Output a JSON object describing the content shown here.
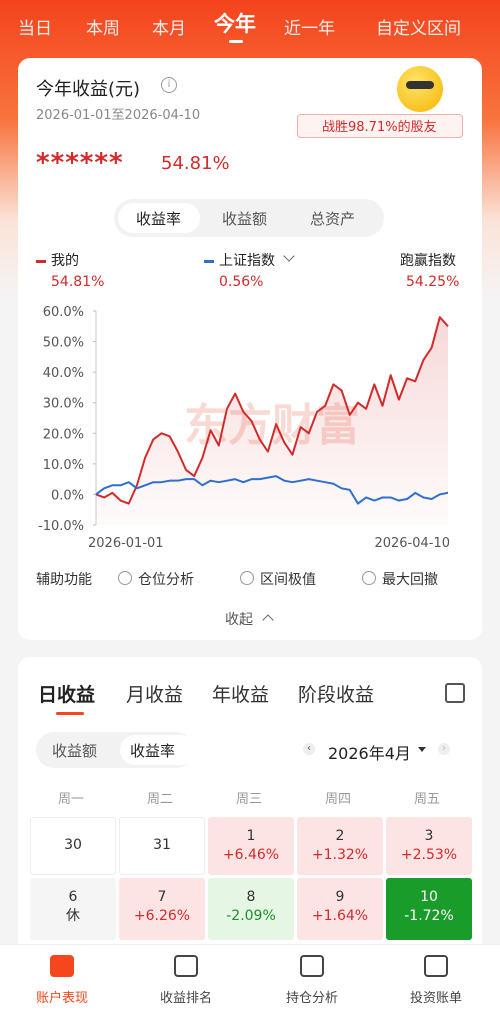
{
  "tabs": {
    "items": [
      "当日",
      "本周",
      "本月",
      "今年",
      "近一年",
      "自定义区间"
    ],
    "active": 3
  },
  "card": {
    "title": "今年收益(元)",
    "date_range": "2026-01-01至2026-04-10",
    "badge": "战胜98.71%的股友",
    "masked": "******",
    "total": "54.81%",
    "segment": {
      "items": [
        "收益率",
        "收益额",
        "总资产"
      ],
      "active": 0
    },
    "legend": [
      {
        "name": "我的",
        "value": "54.81%"
      },
      {
        "name": "上证指数",
        "value": "0.56%"
      },
      {
        "name": "跑赢指数",
        "value": "54.25%"
      }
    ],
    "assist": {
      "label": "辅助功能",
      "options": [
        "仓位分析",
        "区间极值",
        "最大回撤"
      ]
    },
    "collapse": "收起"
  },
  "chart_data": {
    "type": "line",
    "watermark": "东方财富",
    "categories": [
      "2026-01-01",
      null,
      null,
      null,
      null,
      null,
      null,
      null,
      null,
      null,
      null,
      null,
      null,
      null,
      null,
      null,
      null,
      null,
      null,
      null,
      null,
      null,
      null,
      null,
      null,
      null,
      null,
      null,
      null,
      null,
      null,
      null,
      null,
      null,
      null,
      null,
      null,
      null,
      null,
      null,
      null,
      null,
      null,
      "2026-04-10"
    ],
    "series": [
      {
        "name": "我的",
        "color": "#d42a2a",
        "values": [
          0,
          -1,
          0.5,
          -2,
          -3,
          3,
          12,
          18,
          20,
          19,
          14,
          8,
          6,
          12,
          21,
          16,
          28,
          33,
          27,
          24,
          18,
          14,
          23,
          17,
          13,
          22,
          20,
          27,
          29,
          36,
          34,
          26,
          30,
          28,
          36,
          29,
          39,
          31,
          38,
          37,
          44,
          48,
          58,
          55
        ]
      },
      {
        "name": "上证指数",
        "color": "#2f6fd0",
        "values": [
          0,
          2,
          3,
          3,
          4,
          2,
          3,
          4,
          4,
          4.5,
          4.5,
          5,
          5,
          3,
          4.5,
          4,
          4.5,
          5,
          4,
          5,
          5,
          5.5,
          6,
          4.5,
          4,
          4.5,
          5,
          4.5,
          4,
          3.5,
          2,
          1.5,
          -3,
          -1,
          -2,
          -1,
          -1,
          -2,
          -1.5,
          0.5,
          -1,
          -1.5,
          0,
          0.56
        ]
      }
    ],
    "ylim": [
      -10,
      60
    ],
    "yticks": [
      {
        "value": 60,
        "label": "60.0%"
      },
      {
        "value": 50,
        "label": "50.0%"
      },
      {
        "value": 40,
        "label": "40.0%"
      },
      {
        "value": 30,
        "label": "30.0%"
      },
      {
        "value": 20,
        "label": "20.0%"
      },
      {
        "value": 10,
        "label": "10.0%"
      },
      {
        "value": 0,
        "label": "0.0%"
      },
      {
        "value": -10,
        "label": "-10.0%"
      }
    ]
  },
  "daily": {
    "tabs": [
      "日收益",
      "月收益",
      "年收益",
      "阶段收益"
    ],
    "active": 0,
    "toggle": {
      "items": [
        "收益额",
        "收益率"
      ],
      "active": 1
    },
    "month": "2026年4月",
    "weekdays": [
      "周一",
      "周二",
      "周三",
      "周四",
      "周五"
    ],
    "rows": [
      [
        {
          "day": "30"
        },
        {
          "day": "31"
        },
        {
          "day": "1",
          "value": "+6.46%"
        },
        {
          "day": "2",
          "value": "+1.32%"
        },
        {
          "day": "3",
          "value": "+2.53%"
        }
      ],
      [
        {
          "day": "6",
          "value": "休"
        },
        {
          "day": "7",
          "value": "+6.26%"
        },
        {
          "day": "8",
          "value": "-2.09%"
        },
        {
          "day": "9",
          "value": "+1.64%"
        },
        {
          "day": "10",
          "value": "-1.72%"
        }
      ]
    ],
    "selected": [
      1,
      4
    ]
  },
  "nav": {
    "items": [
      "账户表现",
      "收益排名",
      "持仓分析",
      "投资账单"
    ],
    "active": 0
  }
}
